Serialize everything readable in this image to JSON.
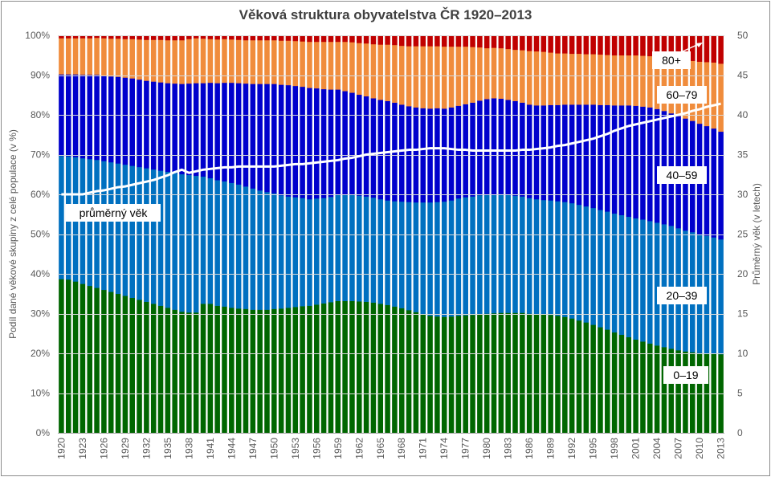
{
  "chart_data": {
    "type": "bar",
    "subtype": "stacked-100-with-line",
    "title": "Věková struktura  obyvatelstva ČR 1920–2013",
    "ylabel": "Podíl dané věkové skupiny z celé populace (v %)",
    "y2label": "Průměrný  věk (v letech)",
    "ylim": [
      0,
      100
    ],
    "y2lim": [
      0,
      50
    ],
    "yticks": [
      "0%",
      "10%",
      "20%",
      "30%",
      "40%",
      "50%",
      "60%",
      "70%",
      "80%",
      "90%",
      "100%"
    ],
    "y2ticks": [
      "0",
      "5",
      "10",
      "15",
      "20",
      "25",
      "30",
      "35",
      "40",
      "45",
      "50"
    ],
    "grid": true,
    "x_tick_labels": [
      "1920",
      "1923",
      "1926",
      "1929",
      "1932",
      "1935",
      "1938",
      "1941",
      "1944",
      "1947",
      "1950",
      "1953",
      "1956",
      "1959",
      "1962",
      "1965",
      "1968",
      "1971",
      "1974",
      "1977",
      "1980",
      "1983",
      "1986",
      "1989",
      "1992",
      "1995",
      "1998",
      "2001",
      "2004",
      "2007",
      "2010",
      "2013"
    ],
    "x_years": [
      1920,
      1921,
      1922,
      1923,
      1924,
      1925,
      1926,
      1927,
      1928,
      1929,
      1930,
      1931,
      1932,
      1933,
      1934,
      1935,
      1936,
      1937,
      1938,
      1939,
      1940,
      1941,
      1942,
      1943,
      1944,
      1945,
      1946,
      1947,
      1948,
      1949,
      1950,
      1951,
      1952,
      1953,
      1954,
      1955,
      1956,
      1957,
      1958,
      1959,
      1960,
      1961,
      1962,
      1963,
      1964,
      1965,
      1966,
      1967,
      1968,
      1969,
      1970,
      1971,
      1972,
      1973,
      1974,
      1975,
      1976,
      1977,
      1978,
      1979,
      1980,
      1981,
      1982,
      1983,
      1984,
      1985,
      1986,
      1987,
      1988,
      1989,
      1990,
      1991,
      1992,
      1993,
      1994,
      1995,
      1996,
      1997,
      1998,
      1999,
      2000,
      2001,
      2002,
      2003,
      2004,
      2005,
      2006,
      2007,
      2008,
      2009,
      2010,
      2011,
      2012,
      2013
    ],
    "series": [
      {
        "name": "0–19",
        "color": "#006600",
        "values": [
          38.7,
          38.6,
          38.1,
          37.5,
          37.0,
          36.5,
          36.0,
          35.5,
          35.0,
          34.5,
          34.0,
          33.5,
          33.0,
          32.5,
          32.0,
          31.5,
          31.0,
          30.5,
          30.3,
          30.3,
          32.5,
          32.5,
          32.0,
          31.8,
          31.5,
          31.3,
          31.2,
          31.0,
          31.0,
          31.0,
          31.2,
          31.3,
          31.5,
          31.7,
          31.9,
          32.0,
          32.3,
          32.6,
          32.9,
          33.2,
          33.2,
          33.2,
          33.1,
          33.0,
          32.8,
          32.5,
          32.2,
          31.8,
          31.4,
          30.9,
          30.4,
          29.9,
          29.5,
          29.3,
          29.2,
          29.3,
          29.5,
          29.6,
          29.7,
          29.8,
          30.0,
          30.1,
          30.2,
          30.2,
          30.2,
          30.2,
          30.0,
          29.9,
          29.8,
          29.7,
          29.5,
          29.2,
          28.8,
          28.3,
          27.8,
          27.2,
          26.6,
          26.0,
          25.3,
          24.7,
          24.1,
          23.5,
          23.0,
          22.5,
          22.0,
          21.6,
          21.2,
          20.8,
          20.5,
          20.3,
          20.1,
          20.0,
          19.9,
          19.8
        ]
      },
      {
        "name": "20–39",
        "color": "#0070c0",
        "values": [
          31.0,
          31.0,
          31.3,
          31.6,
          31.9,
          32.2,
          32.4,
          32.6,
          32.8,
          33.0,
          33.2,
          33.4,
          33.6,
          33.8,
          34.0,
          34.2,
          34.4,
          34.6,
          34.6,
          34.4,
          32.0,
          31.6,
          31.6,
          31.5,
          31.4,
          31.2,
          30.8,
          30.5,
          30.0,
          29.6,
          29.1,
          28.5,
          28.0,
          27.6,
          27.2,
          26.8,
          26.7,
          26.5,
          26.5,
          26.7,
          26.8,
          26.8,
          26.6,
          26.5,
          26.4,
          26.3,
          26.3,
          26.5,
          26.8,
          27.2,
          27.6,
          28.1,
          28.5,
          28.8,
          29.0,
          29.2,
          29.5,
          29.7,
          29.8,
          30.0,
          30.0,
          29.9,
          29.9,
          29.7,
          29.5,
          29.3,
          29.1,
          28.9,
          28.8,
          28.8,
          28.8,
          28.9,
          29.0,
          29.1,
          29.2,
          29.4,
          29.5,
          29.7,
          29.9,
          30.1,
          30.3,
          30.5,
          30.7,
          30.8,
          30.9,
          30.9,
          30.9,
          30.7,
          30.4,
          30.2,
          29.9,
          29.6,
          29.3,
          28.9
        ]
      },
      {
        "name": "40–59",
        "color": "#0000cc",
        "values": [
          20.5,
          20.6,
          20.8,
          21.0,
          21.2,
          21.4,
          21.5,
          21.6,
          21.8,
          21.9,
          22.0,
          22.0,
          22.0,
          22.1,
          22.2,
          22.3,
          22.5,
          22.7,
          23.0,
          23.3,
          23.5,
          24.0,
          24.4,
          24.8,
          25.2,
          25.5,
          25.9,
          26.3,
          26.8,
          27.2,
          27.5,
          27.8,
          28.0,
          28.0,
          28.0,
          28.0,
          27.7,
          27.4,
          27.0,
          26.5,
          26.0,
          25.6,
          25.4,
          25.2,
          25.0,
          25.0,
          25.0,
          24.8,
          24.4,
          24.1,
          23.9,
          23.7,
          23.6,
          23.6,
          23.4,
          23.4,
          23.3,
          23.4,
          23.6,
          23.8,
          24.0,
          24.2,
          24.0,
          23.9,
          23.8,
          23.6,
          23.5,
          23.6,
          23.8,
          24.0,
          24.2,
          24.5,
          24.8,
          25.2,
          25.6,
          26.0,
          26.4,
          26.8,
          27.2,
          27.6,
          28.0,
          28.3,
          28.4,
          28.6,
          28.6,
          28.5,
          28.3,
          28.2,
          28.2,
          28.0,
          27.8,
          27.6,
          27.4,
          27.1
        ]
      },
      {
        "name": "60–79",
        "color": "#f08c3c",
        "values": [
          9.1,
          9.1,
          9.1,
          9.2,
          9.2,
          9.3,
          9.4,
          9.5,
          9.6,
          9.7,
          9.9,
          10.1,
          10.3,
          10.5,
          10.7,
          10.8,
          10.9,
          11.0,
          11.2,
          11.3,
          11.2,
          11.0,
          11.0,
          11.0,
          10.9,
          10.9,
          10.9,
          11.0,
          11.0,
          11.0,
          11.0,
          11.1,
          11.2,
          11.3,
          11.4,
          11.6,
          11.7,
          11.9,
          12.0,
          12.0,
          12.4,
          12.7,
          13.0,
          13.3,
          13.6,
          13.9,
          14.2,
          14.5,
          14.8,
          15.1,
          15.4,
          15.6,
          15.7,
          15.6,
          15.6,
          15.3,
          14.9,
          14.5,
          14.0,
          13.4,
          12.8,
          12.7,
          12.7,
          12.8,
          12.9,
          13.2,
          13.5,
          13.6,
          13.5,
          13.2,
          13.0,
          12.9,
          12.8,
          12.8,
          12.7,
          12.7,
          12.7,
          12.6,
          12.6,
          12.6,
          12.6,
          12.7,
          12.8,
          12.9,
          13.1,
          13.4,
          13.8,
          14.2,
          14.7,
          15.1,
          15.6,
          16.1,
          16.6,
          17.1
        ]
      },
      {
        "name": "80+",
        "color": "#c00000",
        "values": [
          0.7,
          0.7,
          0.7,
          0.7,
          0.7,
          0.6,
          0.7,
          0.8,
          0.8,
          0.9,
          0.9,
          1.0,
          1.1,
          1.1,
          1.1,
          1.2,
          1.2,
          1.2,
          0.9,
          0.7,
          0.8,
          0.9,
          1.0,
          0.9,
          1.0,
          1.1,
          1.2,
          1.2,
          1.2,
          1.2,
          1.2,
          1.3,
          1.3,
          1.4,
          1.5,
          1.6,
          1.6,
          1.6,
          1.6,
          1.6,
          1.6,
          1.7,
          1.9,
          2.0,
          2.2,
          2.3,
          2.3,
          2.4,
          2.6,
          2.7,
          2.7,
          2.7,
          2.7,
          2.7,
          2.8,
          2.8,
          2.8,
          2.8,
          2.9,
          3.0,
          3.2,
          3.1,
          3.2,
          3.4,
          3.6,
          3.7,
          3.9,
          4.0,
          4.1,
          4.3,
          4.5,
          4.5,
          4.6,
          4.6,
          4.7,
          4.7,
          4.8,
          4.9,
          5.0,
          5.0,
          5.0,
          5.0,
          5.1,
          5.2,
          5.4,
          5.6,
          5.8,
          6.1,
          6.2,
          6.4,
          6.6,
          6.7,
          6.8,
          7.1
        ]
      }
    ],
    "line_series": {
      "name": "průměrný  věk",
      "axis": "right",
      "color": "#ffffff",
      "values": [
        30.0,
        30.0,
        30.0,
        30.0,
        30.2,
        30.4,
        30.5,
        30.7,
        30.9,
        31.0,
        31.2,
        31.4,
        31.6,
        31.8,
        32.1,
        32.4,
        32.8,
        33.1,
        32.7,
        32.9,
        33.1,
        33.2,
        33.3,
        33.4,
        33.4,
        33.5,
        33.5,
        33.5,
        33.5,
        33.5,
        33.5,
        33.6,
        33.7,
        33.8,
        33.8,
        33.9,
        34.0,
        34.1,
        34.2,
        34.3,
        34.5,
        34.6,
        34.8,
        35.0,
        35.1,
        35.2,
        35.3,
        35.4,
        35.5,
        35.6,
        35.6,
        35.7,
        35.8,
        35.8,
        35.8,
        35.7,
        35.6,
        35.6,
        35.5,
        35.5,
        35.5,
        35.5,
        35.5,
        35.5,
        35.5,
        35.6,
        35.6,
        35.7,
        35.8,
        35.9,
        36.1,
        36.2,
        36.4,
        36.6,
        36.8,
        37.0,
        37.3,
        37.6,
        38.0,
        38.3,
        38.6,
        38.8,
        39.0,
        39.2,
        39.4,
        39.6,
        39.8,
        40.0,
        40.2,
        40.5,
        40.7,
        41.0,
        41.2,
        41.4
      ]
    },
    "annotations": [
      "80+",
      "60–79",
      "40–59",
      "20–39",
      "0–19",
      "průměrný  věk"
    ]
  }
}
